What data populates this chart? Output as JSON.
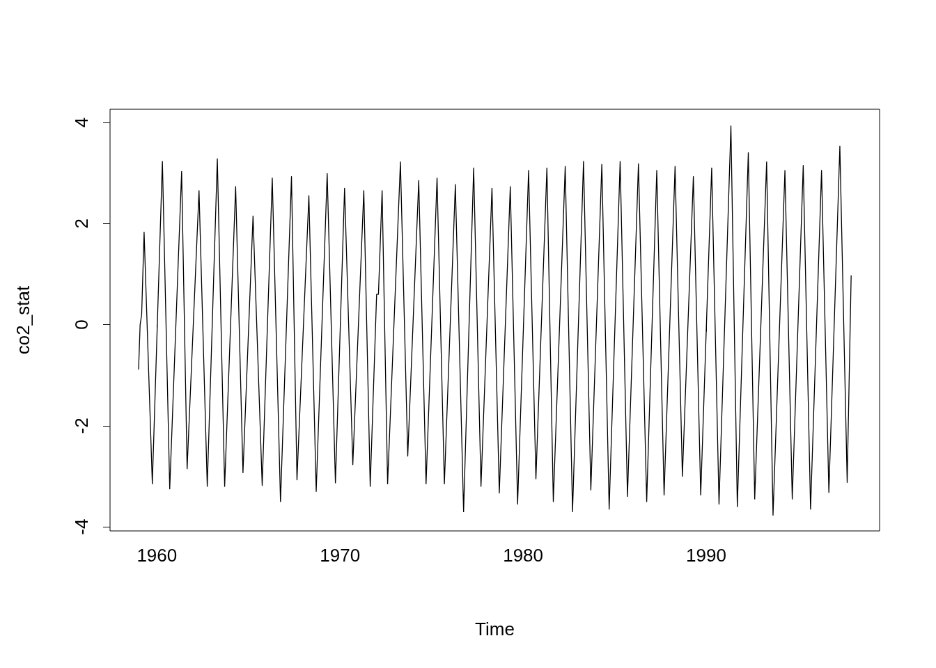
{
  "chart_data": {
    "type": "line",
    "xlabel": "Time",
    "ylabel": "co2_stat",
    "xlim": [
      1957.44,
      1999.47
    ],
    "ylim": [
      -4.08,
      4.26
    ],
    "xticks": [
      1960,
      1970,
      1980,
      1990
    ],
    "yticks": [
      -4,
      -2,
      0,
      2,
      4
    ],
    "grid": false,
    "marker": "none",
    "line_style": "solid",
    "series": [
      {
        "color": "#000000",
        "x": [
          1959.0,
          1959.083,
          1959.167,
          1959.3,
          1959.75,
          1960.3,
          1960.7,
          1961.35,
          1961.65,
          1962.3,
          1962.75,
          1963.3,
          1963.7,
          1964.3,
          1964.7,
          1965.25,
          1965.75,
          1966.3,
          1966.75,
          1967.35,
          1967.65,
          1968.3,
          1968.7,
          1969.3,
          1969.75,
          1970.25,
          1970.7,
          1971.3,
          1971.65,
          1972.0,
          1972.1,
          1972.3,
          1972.6,
          1973.3,
          1973.7,
          1974.3,
          1974.7,
          1975.3,
          1975.7,
          1976.3,
          1976.75,
          1977.3,
          1977.7,
          1978.3,
          1978.7,
          1979.3,
          1979.7,
          1980.3,
          1980.7,
          1981.3,
          1981.65,
          1982.3,
          1982.7,
          1983.3,
          1983.7,
          1984.3,
          1984.7,
          1985.3,
          1985.7,
          1986.3,
          1986.75,
          1987.3,
          1987.7,
          1988.3,
          1988.7,
          1989.3,
          1989.7,
          1990.3,
          1990.7,
          1991.35,
          1991.7,
          1992.3,
          1992.65,
          1993.3,
          1993.65,
          1994.3,
          1994.7,
          1995.3,
          1995.7,
          1996.3,
          1996.7,
          1997.3,
          1997.7,
          1997.917
        ],
        "values": [
          -0.88,
          0.0,
          0.2,
          1.83,
          -3.15,
          3.23,
          -3.25,
          3.03,
          -2.85,
          2.65,
          -3.2,
          3.28,
          -3.2,
          2.73,
          -2.93,
          2.15,
          -3.18,
          2.9,
          -3.5,
          2.93,
          -3.07,
          2.55,
          -3.3,
          2.99,
          -3.13,
          2.7,
          -2.77,
          2.65,
          -3.2,
          0.6,
          0.6,
          2.65,
          -3.15,
          3.22,
          -2.6,
          2.85,
          -3.15,
          2.9,
          -3.15,
          2.77,
          -3.7,
          3.1,
          -3.2,
          2.7,
          -3.33,
          2.73,
          -3.55,
          3.05,
          -3.05,
          3.1,
          -3.5,
          3.13,
          -3.7,
          3.23,
          -3.27,
          3.17,
          -3.65,
          3.23,
          -3.4,
          3.18,
          -3.5,
          3.05,
          -3.37,
          3.13,
          -3.0,
          2.93,
          -3.37,
          3.1,
          -3.55,
          3.93,
          -3.6,
          3.4,
          -3.45,
          3.22,
          -3.77,
          3.05,
          -3.45,
          3.15,
          -3.65,
          3.05,
          -3.32,
          3.53,
          -3.12,
          0.97
        ]
      }
    ]
  }
}
